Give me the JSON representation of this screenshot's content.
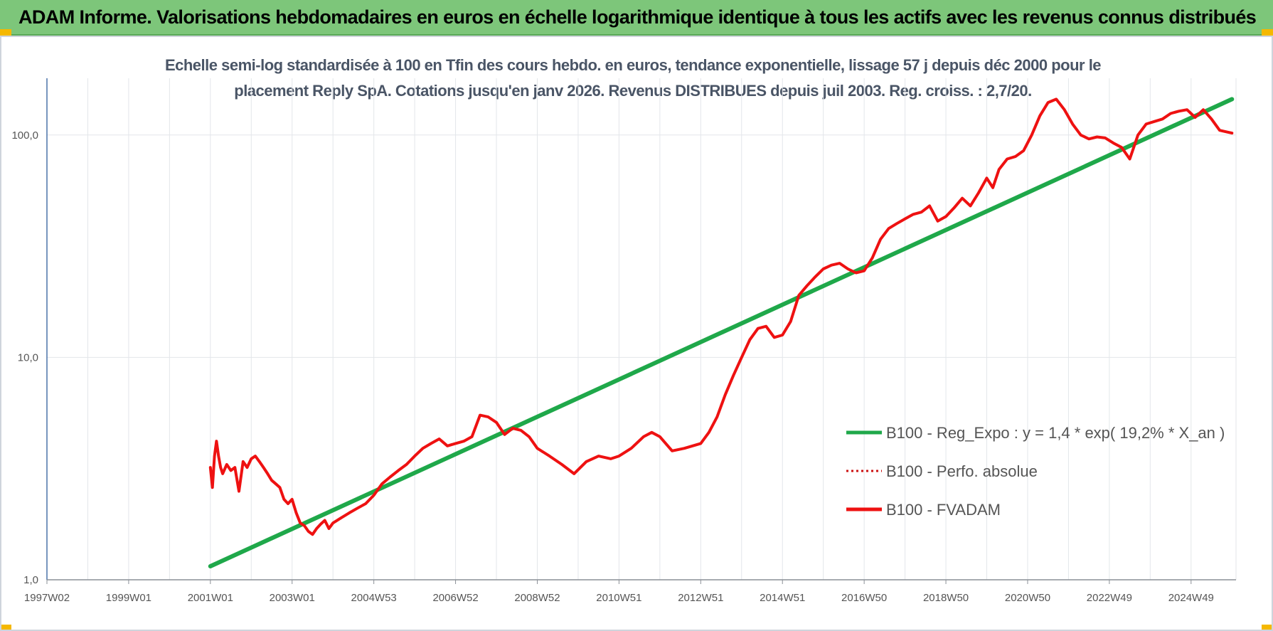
{
  "header": {
    "title": "ADAM Informe. Valorisations hebdomadaires en euros en échelle logarithmique identique à tous les actifs avec les revenus connus distribués"
  },
  "colors": {
    "banner": "#7dc67a",
    "regression": "#1fa84a",
    "fvadam": "#ee1111",
    "perfo": "#cc1111",
    "grid": "#e3e6ea",
    "axis": "#4a72a8"
  },
  "chart_data": {
    "type": "line",
    "title": "Echelle semi-log standardisée à 100 en Tfin des cours hebdo. en euros, tendance exponentielle, lissage 57 j depuis déc 2000 pour le placement Reply SpA. Cotations jusqu'en janv 2026. Revenus DISTRIBUES depuis juil 2003. Reg. croiss. : 2,7/20.",
    "yscale": "log",
    "ylim": [
      1,
      180
    ],
    "xlim": [
      1997.0,
      2026.1
    ],
    "y_ticks": [
      "1,0",
      "10,0",
      "100,0"
    ],
    "x_ticks": [
      {
        "label": "1997W02",
        "year": 1997.0
      },
      {
        "label": "1999W01",
        "year": 1999.0
      },
      {
        "label": "2001W01",
        "year": 2001.0
      },
      {
        "label": "2003W01",
        "year": 2003.0
      },
      {
        "label": "2004W53",
        "year": 2005.0
      },
      {
        "label": "2006W52",
        "year": 2007.0
      },
      {
        "label": "2008W52",
        "year": 2009.0
      },
      {
        "label": "2010W51",
        "year": 2011.0
      },
      {
        "label": "2012W51",
        "year": 2013.0
      },
      {
        "label": "2014W51",
        "year": 2015.0
      },
      {
        "label": "2016W50",
        "year": 2017.0
      },
      {
        "label": "2018W50",
        "year": 2019.0
      },
      {
        "label": "2020W50",
        "year": 2021.0
      },
      {
        "label": "2022W49",
        "year": 2023.0
      },
      {
        "label": "2024W49",
        "year": 2025.0
      }
    ],
    "legend": {
      "placement": "center-right",
      "entries": [
        {
          "label": "B100 - Reg_Expo : y = 1,4 * exp( 19,2% *  X_an )",
          "style": "solid",
          "color": "#1fa84a"
        },
        {
          "label": "B100 - Perfo. absolue",
          "style": "dotted",
          "color": "#cc1111"
        },
        {
          "label": "B100 - FVADAM",
          "style": "solid",
          "color": "#ee1111"
        }
      ]
    },
    "series": [
      {
        "name": "B100 - Reg_Expo : y = 1,4 * exp( 19,2% *  X_an )",
        "style": "solid",
        "x": [
          2001.0,
          2026.0
        ],
        "y": [
          1.15,
          145
        ]
      },
      {
        "name": "B100 - Perfo. absolue",
        "style": "dotted",
        "x": [],
        "y": []
      },
      {
        "name": "B100 - FVADAM",
        "style": "solid",
        "x": [
          2001.0,
          2001.05,
          2001.1,
          2001.15,
          2001.2,
          2001.25,
          2001.3,
          2001.4,
          2001.5,
          2001.6,
          2001.7,
          2001.8,
          2001.9,
          2002.0,
          2002.1,
          2002.2,
          2002.3,
          2002.4,
          2002.5,
          2002.6,
          2002.7,
          2002.8,
          2002.9,
          2003.0,
          2003.1,
          2003.2,
          2003.3,
          2003.4,
          2003.5,
          2003.6,
          2003.7,
          2003.8,
          2003.9,
          2004.0,
          2004.2,
          2004.4,
          2004.6,
          2004.8,
          2005.0,
          2005.2,
          2005.4,
          2005.6,
          2005.8,
          2006.0,
          2006.2,
          2006.4,
          2006.6,
          2006.8,
          2007.0,
          2007.2,
          2007.4,
          2007.6,
          2007.8,
          2008.0,
          2008.2,
          2008.4,
          2008.6,
          2008.8,
          2009.0,
          2009.3,
          2009.6,
          2009.9,
          2010.2,
          2010.5,
          2010.8,
          2011.0,
          2011.3,
          2011.6,
          2011.8,
          2012.0,
          2012.3,
          2012.6,
          2012.8,
          2013.0,
          2013.2,
          2013.4,
          2013.6,
          2013.8,
          2014.0,
          2014.2,
          2014.4,
          2014.6,
          2014.8,
          2015.0,
          2015.2,
          2015.4,
          2015.6,
          2015.8,
          2016.0,
          2016.2,
          2016.4,
          2016.6,
          2016.8,
          2017.0,
          2017.2,
          2017.4,
          2017.6,
          2017.8,
          2018.0,
          2018.2,
          2018.4,
          2018.6,
          2018.8,
          2019.0,
          2019.2,
          2019.4,
          2019.6,
          2019.8,
          2020.0,
          2020.15,
          2020.3,
          2020.5,
          2020.7,
          2020.9,
          2021.1,
          2021.3,
          2021.5,
          2021.7,
          2021.9,
          2022.1,
          2022.3,
          2022.5,
          2022.7,
          2022.9,
          2023.1,
          2023.3,
          2023.5,
          2023.7,
          2023.9,
          2024.1,
          2024.3,
          2024.5,
          2024.7,
          2024.9,
          2025.1,
          2025.3,
          2025.5,
          2025.7,
          2025.9,
          2026.0
        ],
        "y": [
          3.2,
          2.6,
          3.6,
          4.2,
          3.6,
          3.2,
          3.0,
          3.3,
          3.1,
          3.2,
          2.5,
          3.4,
          3.2,
          3.5,
          3.6,
          3.4,
          3.2,
          3.0,
          2.8,
          2.7,
          2.6,
          2.3,
          2.2,
          2.3,
          2.0,
          1.8,
          1.75,
          1.65,
          1.6,
          1.7,
          1.78,
          1.85,
          1.7,
          1.8,
          1.9,
          2.0,
          2.1,
          2.2,
          2.4,
          2.7,
          2.9,
          3.1,
          3.3,
          3.6,
          3.9,
          4.1,
          4.3,
          4.0,
          4.1,
          4.2,
          4.4,
          5.5,
          5.4,
          5.1,
          4.5,
          4.8,
          4.7,
          4.4,
          3.9,
          3.6,
          3.3,
          3.0,
          3.4,
          3.6,
          3.5,
          3.6,
          3.9,
          4.4,
          4.6,
          4.4,
          3.8,
          3.9,
          4.0,
          4.1,
          4.6,
          5.4,
          6.8,
          8.3,
          10.0,
          12.0,
          13.5,
          13.8,
          12.3,
          12.6,
          14.5,
          19.0,
          21.0,
          23.0,
          25.0,
          26.0,
          26.5,
          25.0,
          24.0,
          24.5,
          28.0,
          34.0,
          38.0,
          40.0,
          42.0,
          44.0,
          45.0,
          48.0,
          41.0,
          43.0,
          47.0,
          52.0,
          48.0,
          55.0,
          64.0,
          58.0,
          70.0,
          78.0,
          80.0,
          85.0,
          100.0,
          122.0,
          140.0,
          145.0,
          130.0,
          112.0,
          100.0,
          96.0,
          98.0,
          97.0,
          92.0,
          88.0,
          78.0,
          100.0,
          112.0,
          115.0,
          118.0,
          125.0,
          128.0,
          130.0,
          120.0,
          130.0,
          118.0,
          105.0,
          103.0,
          102.0
        ]
      }
    ]
  }
}
